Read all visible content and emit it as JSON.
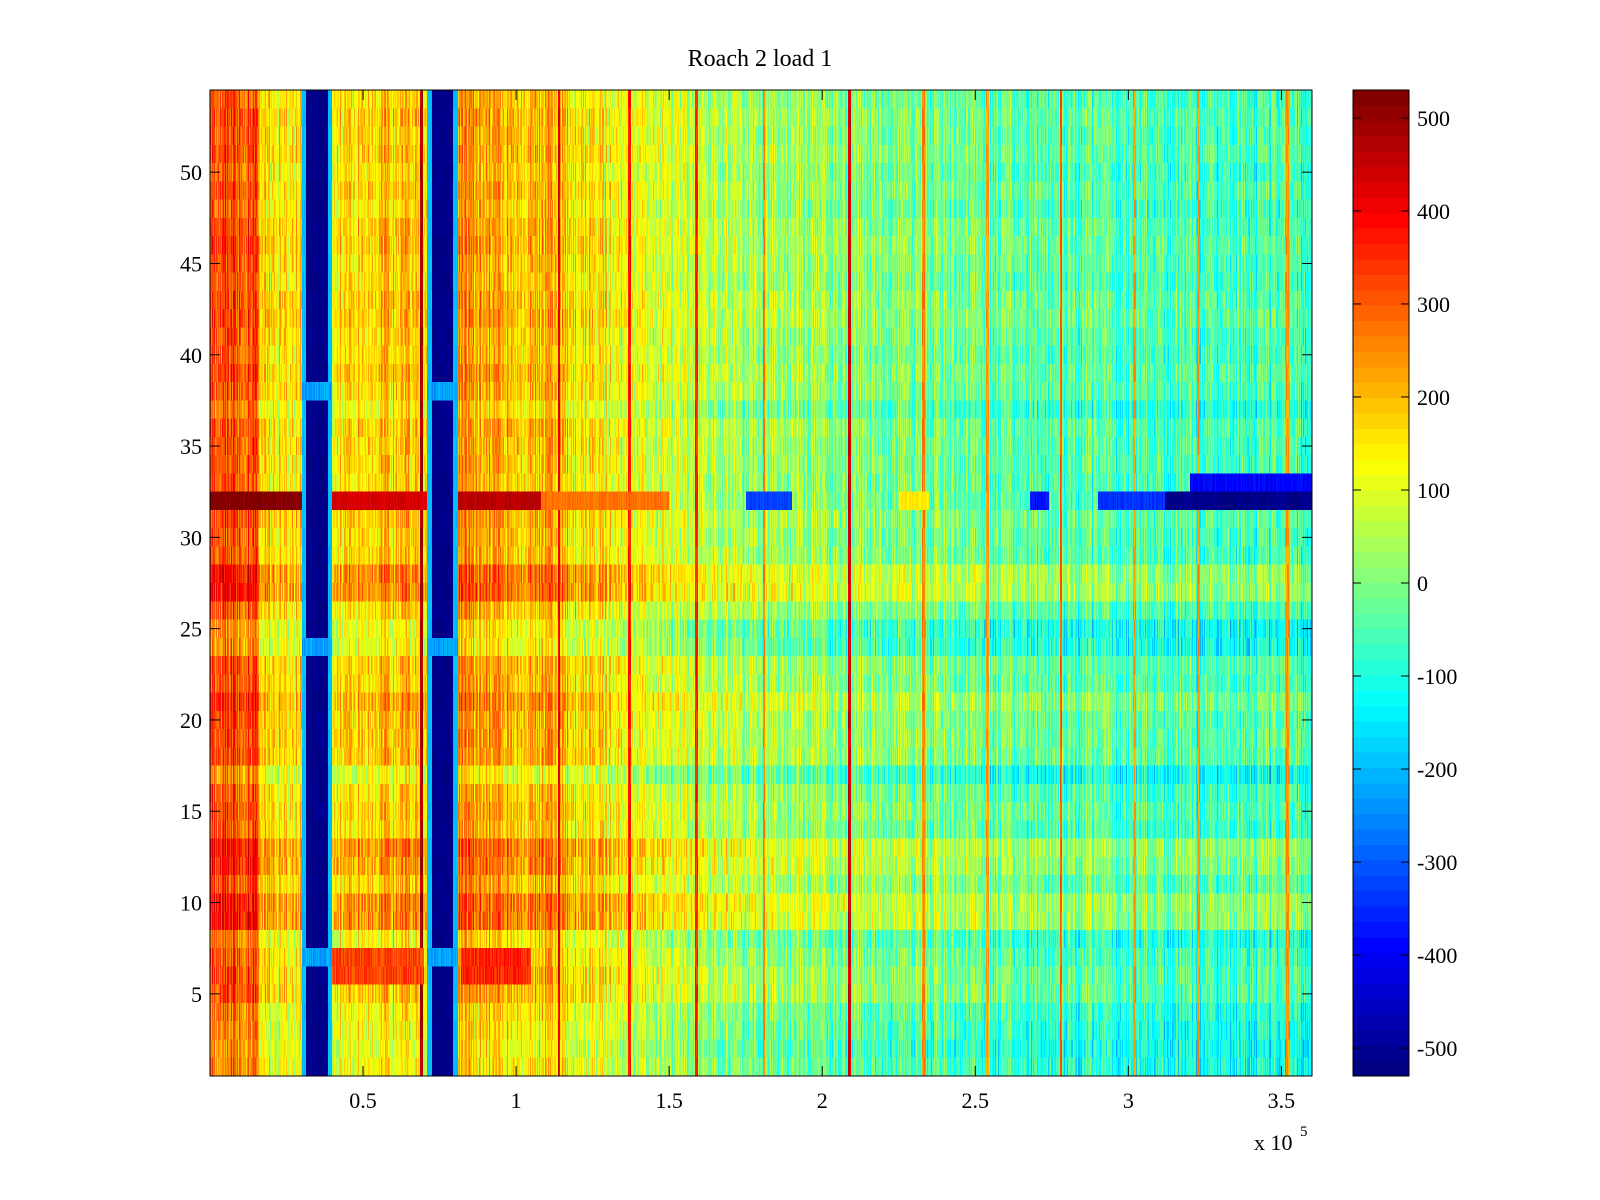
{
  "chart_data": {
    "type": "heatmap",
    "title": "Roach 2 load 1",
    "xlabel": "",
    "ylabel": "",
    "x_range": [
      0,
      360000
    ],
    "y_range": [
      0.5,
      54.5
    ],
    "rows": 54,
    "xticks": [
      {
        "value": 50000,
        "label": "0.5"
      },
      {
        "value": 100000,
        "label": "1"
      },
      {
        "value": 150000,
        "label": "1.5"
      },
      {
        "value": 200000,
        "label": "2"
      },
      {
        "value": 250000,
        "label": "2.5"
      },
      {
        "value": 300000,
        "label": "3"
      },
      {
        "value": 350000,
        "label": "3.5"
      }
    ],
    "x_exponent_label": {
      "base": "x 10",
      "exponent": "5"
    },
    "yticks": [
      {
        "value": 5,
        "label": "5"
      },
      {
        "value": 10,
        "label": "10"
      },
      {
        "value": 15,
        "label": "15"
      },
      {
        "value": 20,
        "label": "20"
      },
      {
        "value": 25,
        "label": "25"
      },
      {
        "value": 30,
        "label": "30"
      },
      {
        "value": 35,
        "label": "35"
      },
      {
        "value": 40,
        "label": "40"
      },
      {
        "value": 45,
        "label": "45"
      },
      {
        "value": 50,
        "label": "50"
      }
    ],
    "colorbar": {
      "colormap": "jet",
      "range": [
        -530,
        530
      ],
      "ticks": [
        {
          "value": 500,
          "label": "500"
        },
        {
          "value": 400,
          "label": "400"
        },
        {
          "value": 300,
          "label": "300"
        },
        {
          "value": 200,
          "label": "200"
        },
        {
          "value": 100,
          "label": "100"
        },
        {
          "value": 0,
          "label": "0"
        },
        {
          "value": -100,
          "label": "-100"
        },
        {
          "value": -200,
          "label": "-200"
        },
        {
          "value": -300,
          "label": "-300"
        },
        {
          "value": -400,
          "label": "-400"
        },
        {
          "value": -500,
          "label": "-500"
        }
      ]
    },
    "column_trend": [
      {
        "x": 0,
        "value": 330
      },
      {
        "x": 15000,
        "value": 320
      },
      {
        "x": 16000,
        "value": 170
      },
      {
        "x": 28000,
        "value": 150
      },
      {
        "x": 40000,
        "value": 150
      },
      {
        "x": 55000,
        "value": 210
      },
      {
        "x": 70000,
        "value": 180
      },
      {
        "x": 83000,
        "value": 240
      },
      {
        "x": 100000,
        "value": 220
      },
      {
        "x": 115000,
        "value": 190
      },
      {
        "x": 135000,
        "value": 120
      },
      {
        "x": 160000,
        "value": 60
      },
      {
        "x": 200000,
        "value": 20
      },
      {
        "x": 250000,
        "value": -20
      },
      {
        "x": 300000,
        "value": -50
      },
      {
        "x": 360000,
        "value": -70
      }
    ],
    "vertical_bands": [
      {
        "x_start": 30000,
        "x_end": 40000,
        "value": -520,
        "edge_value": -200
      },
      {
        "x_start": 71000,
        "x_end": 81000,
        "value": -520,
        "edge_value": -200
      }
    ],
    "thin_stripes": [
      {
        "x": 69000,
        "value": 480
      },
      {
        "x": 114000,
        "value": 420
      },
      {
        "x": 137000,
        "value": 380
      },
      {
        "x": 159000,
        "value": 360
      },
      {
        "x": 181000,
        "value": 260
      },
      {
        "x": 209000,
        "value": 440
      },
      {
        "x": 233000,
        "value": 260
      },
      {
        "x": 254000,
        "value": 230
      },
      {
        "x": 278000,
        "value": 300
      },
      {
        "x": 302000,
        "value": 230
      },
      {
        "x": 323000,
        "value": 240
      },
      {
        "x": 352000,
        "value": 240
      }
    ],
    "row_32_segments": [
      {
        "x_start": 0,
        "x_end": 30000,
        "value": 530
      },
      {
        "x_start": 40000,
        "x_end": 71000,
        "value": 440
      },
      {
        "x_start": 81000,
        "x_end": 108000,
        "value": 470
      },
      {
        "x_start": 108000,
        "x_end": 150000,
        "value": 280
      },
      {
        "x_start": 175000,
        "x_end": 190000,
        "value": -330
      },
      {
        "x_start": 225000,
        "x_end": 235000,
        "value": 150
      },
      {
        "x_start": 268000,
        "x_end": 274000,
        "value": -380
      },
      {
        "x_start": 290000,
        "x_end": 312000,
        "value": -350
      },
      {
        "x_start": 312000,
        "x_end": 360000,
        "value": -520
      }
    ],
    "row_33_segments": [
      {
        "x_start": 320000,
        "x_end": 360000,
        "value": -400
      }
    ],
    "bright_rows": [
      9,
      10,
      12,
      13,
      21,
      27,
      28
    ],
    "dim_rows": [
      1,
      2,
      3,
      4,
      8,
      17,
      24,
      25,
      37
    ],
    "rows_6_7_segments": [
      {
        "x_start": 40000,
        "x_end": 70000,
        "value": 330
      },
      {
        "x_start": 82000,
        "x_end": 105000,
        "value": 360
      }
    ]
  }
}
